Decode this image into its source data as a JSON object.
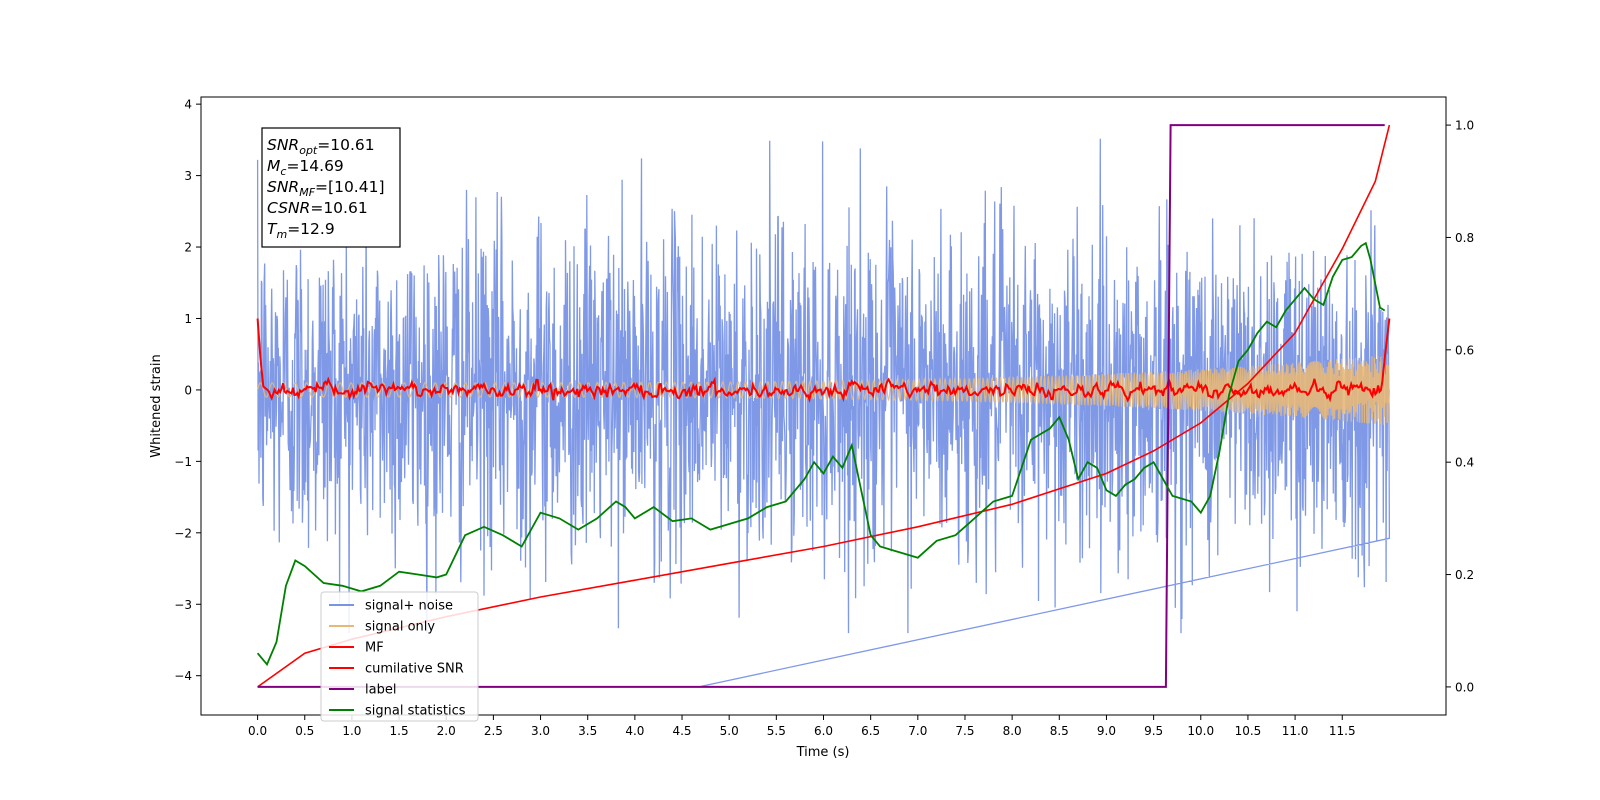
{
  "chart_data": {
    "type": "line",
    "xlabel": "Time (s)",
    "ylabel_left": "Whitened strain",
    "ylabel_right": "",
    "xlim": [
      -0.6,
      12.6
    ],
    "ylim_left": [
      -4.55,
      4.1
    ],
    "ylim_right": [
      -0.05,
      1.05
    ],
    "x_ticks": [
      "0.0",
      "0.5",
      "1.0",
      "1.5",
      "2.0",
      "2.5",
      "3.0",
      "3.5",
      "4.0",
      "4.5",
      "5.0",
      "5.5",
      "6.0",
      "6.5",
      "7.0",
      "7.5",
      "8.0",
      "8.5",
      "9.0",
      "9.5",
      "10.0",
      "10.5",
      "11.0",
      "11.5"
    ],
    "y_ticks_left": [
      "4",
      "3",
      "2",
      "1",
      "0",
      "−1",
      "−2",
      "−3",
      "−4"
    ],
    "y_ticks_right": [
      "1.0",
      "0.8",
      "0.6",
      "0.4",
      "0.2",
      "0.0"
    ],
    "grid": false,
    "legend_position": "lower-left",
    "annotation": [
      {
        "main": "SNR",
        "sub": "opt",
        "value": "=10.61"
      },
      {
        "main": "M",
        "sub": "c",
        "value": "=14.69"
      },
      {
        "main": "SNR",
        "sub": "MF",
        "value": "=[10.41]"
      },
      {
        "main": "CSNR",
        "sub": "",
        "value": "=10.61"
      },
      {
        "main": "T",
        "sub": "m",
        "value": "=12.9"
      }
    ],
    "series": [
      {
        "name": "signal+ noise",
        "axis": "left",
        "color": "#7894e6",
        "kind": "noise",
        "x_range": [
          0.0,
          12.0
        ],
        "typical_amplitude": 2.0,
        "peak_max": 3.7,
        "peak_min": -4.15
      },
      {
        "name": "signal only",
        "axis": "left",
        "color": "#e8b878",
        "kind": "chirp",
        "x_range": [
          0.0,
          12.0
        ],
        "amplitude_start": 0.1,
        "amplitude_end": 0.5
      },
      {
        "name": "MF",
        "axis": "left",
        "color": "#ff0000",
        "kind": "mf",
        "points": [
          [
            0.0,
            1.0
          ],
          [
            0.03,
            0.45
          ],
          [
            0.06,
            0.05
          ],
          [
            0.1,
            0.0
          ],
          [
            11.92,
            0.05
          ],
          [
            11.95,
            0.45
          ],
          [
            12.0,
            1.0
          ]
        ]
      },
      {
        "name": "cumilative SNR",
        "axis": "right",
        "color": "#ff0000",
        "kind": "cumulative",
        "points": [
          [
            0.0,
            0.0
          ],
          [
            0.5,
            0.06
          ],
          [
            1.0,
            0.085
          ],
          [
            2.0,
            0.125
          ],
          [
            3.0,
            0.16
          ],
          [
            4.0,
            0.19
          ],
          [
            5.0,
            0.22
          ],
          [
            6.0,
            0.25
          ],
          [
            7.0,
            0.285
          ],
          [
            8.0,
            0.325
          ],
          [
            9.0,
            0.38
          ],
          [
            9.5,
            0.42
          ],
          [
            10.0,
            0.47
          ],
          [
            10.5,
            0.54
          ],
          [
            11.0,
            0.63
          ],
          [
            11.5,
            0.78
          ],
          [
            11.85,
            0.9
          ],
          [
            12.0,
            1.0
          ]
        ]
      },
      {
        "name": "label",
        "axis": "right",
        "color": "#800080",
        "kind": "step",
        "points": [
          [
            0.0,
            0.0
          ],
          [
            9.63,
            0.0
          ],
          [
            9.68,
            1.0
          ],
          [
            11.95,
            1.0
          ]
        ]
      },
      {
        "name": "signal statistics",
        "axis": "right",
        "color": "#008000",
        "kind": "line",
        "points": [
          [
            0.0,
            0.06
          ],
          [
            0.1,
            0.04
          ],
          [
            0.2,
            0.08
          ],
          [
            0.3,
            0.18
          ],
          [
            0.4,
            0.225
          ],
          [
            0.5,
            0.215
          ],
          [
            0.7,
            0.185
          ],
          [
            0.9,
            0.18
          ],
          [
            1.1,
            0.17
          ],
          [
            1.3,
            0.18
          ],
          [
            1.5,
            0.205
          ],
          [
            1.7,
            0.2
          ],
          [
            1.9,
            0.195
          ],
          [
            2.0,
            0.2
          ],
          [
            2.2,
            0.27
          ],
          [
            2.4,
            0.285
          ],
          [
            2.6,
            0.27
          ],
          [
            2.8,
            0.25
          ],
          [
            3.0,
            0.31
          ],
          [
            3.2,
            0.3
          ],
          [
            3.4,
            0.28
          ],
          [
            3.6,
            0.3
          ],
          [
            3.8,
            0.33
          ],
          [
            3.9,
            0.32
          ],
          [
            4.0,
            0.3
          ],
          [
            4.2,
            0.32
          ],
          [
            4.4,
            0.295
          ],
          [
            4.6,
            0.3
          ],
          [
            4.8,
            0.28
          ],
          [
            5.0,
            0.29
          ],
          [
            5.2,
            0.3
          ],
          [
            5.4,
            0.32
          ],
          [
            5.6,
            0.33
          ],
          [
            5.8,
            0.37
          ],
          [
            5.9,
            0.4
          ],
          [
            6.0,
            0.38
          ],
          [
            6.1,
            0.41
          ],
          [
            6.2,
            0.39
          ],
          [
            6.3,
            0.43
          ],
          [
            6.4,
            0.35
          ],
          [
            6.5,
            0.27
          ],
          [
            6.6,
            0.25
          ],
          [
            6.8,
            0.24
          ],
          [
            7.0,
            0.23
          ],
          [
            7.2,
            0.26
          ],
          [
            7.4,
            0.27
          ],
          [
            7.6,
            0.3
          ],
          [
            7.8,
            0.33
          ],
          [
            8.0,
            0.34
          ],
          [
            8.2,
            0.44
          ],
          [
            8.4,
            0.46
          ],
          [
            8.5,
            0.48
          ],
          [
            8.6,
            0.44
          ],
          [
            8.7,
            0.37
          ],
          [
            8.8,
            0.4
          ],
          [
            8.9,
            0.39
          ],
          [
            9.0,
            0.35
          ],
          [
            9.1,
            0.34
          ],
          [
            9.2,
            0.36
          ],
          [
            9.3,
            0.37
          ],
          [
            9.4,
            0.39
          ],
          [
            9.5,
            0.4
          ],
          [
            9.6,
            0.37
          ],
          [
            9.7,
            0.34
          ],
          [
            9.9,
            0.33
          ],
          [
            10.0,
            0.31
          ],
          [
            10.1,
            0.34
          ],
          [
            10.2,
            0.42
          ],
          [
            10.3,
            0.52
          ],
          [
            10.4,
            0.58
          ],
          [
            10.5,
            0.6
          ],
          [
            10.6,
            0.63
          ],
          [
            10.7,
            0.65
          ],
          [
            10.8,
            0.64
          ],
          [
            10.9,
            0.67
          ],
          [
            11.0,
            0.69
          ],
          [
            11.1,
            0.71
          ],
          [
            11.2,
            0.69
          ],
          [
            11.3,
            0.68
          ],
          [
            11.4,
            0.73
          ],
          [
            11.5,
            0.76
          ],
          [
            11.6,
            0.765
          ],
          [
            11.7,
            0.785
          ],
          [
            11.75,
            0.79
          ],
          [
            11.8,
            0.76
          ],
          [
            11.9,
            0.675
          ],
          [
            11.95,
            0.67
          ]
        ]
      }
    ]
  }
}
